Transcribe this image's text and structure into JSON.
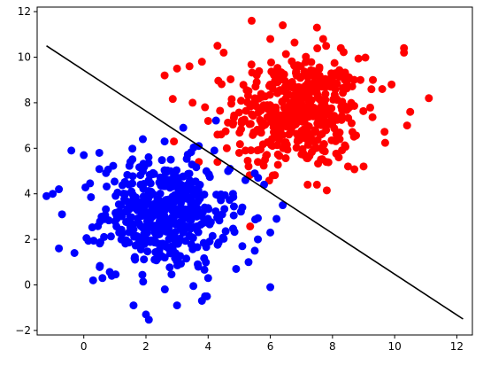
{
  "chart_data": {
    "type": "scatter",
    "title": "",
    "xlabel": "",
    "ylabel": "",
    "xlim": [
      -1.5,
      12.5
    ],
    "ylim": [
      -2.2,
      12.2
    ],
    "xticks": [
      0,
      2,
      4,
      6,
      8,
      10,
      12
    ],
    "yticks": [
      -2,
      0,
      2,
      4,
      6,
      8,
      10,
      12
    ],
    "xtick_labels": [
      "0",
      "2",
      "4",
      "6",
      "8",
      "10",
      "12"
    ],
    "ytick_labels": [
      "−2",
      "0",
      "2",
      "4",
      "6",
      "8",
      "10",
      "12"
    ],
    "grid": false,
    "legend": "none",
    "series": [
      {
        "color": "#ff0000",
        "center": [
          6.9,
          7.6
        ],
        "spread": [
          1.0,
          1.2
        ],
        "point_count": 500,
        "points": [
          [
            5.4,
            11.6
          ],
          [
            6.4,
            11.4
          ],
          [
            7.5,
            11.3
          ],
          [
            4.3,
            10.5
          ],
          [
            6.0,
            10.8
          ],
          [
            7.7,
            10.8
          ],
          [
            10.3,
            10.4
          ],
          [
            10.3,
            10.2
          ],
          [
            4.5,
            10.2
          ],
          [
            3.4,
            9.6
          ],
          [
            3.8,
            9.8
          ],
          [
            2.6,
            9.2
          ],
          [
            3.0,
            9.5
          ],
          [
            8.9,
            9.0
          ],
          [
            9.3,
            9.0
          ],
          [
            9.9,
            8.8
          ],
          [
            9.6,
            8.6
          ],
          [
            11.1,
            8.2
          ],
          [
            10.5,
            7.6
          ],
          [
            10.4,
            7.0
          ],
          [
            3.5,
            8.0
          ],
          [
            3.9,
            7.8
          ],
          [
            4.0,
            7.2
          ],
          [
            4.3,
            6.6
          ],
          [
            4.6,
            6.0
          ],
          [
            5.2,
            5.9
          ],
          [
            5.0,
            5.8
          ],
          [
            5.6,
            5.4
          ],
          [
            5.3,
            5.2
          ],
          [
            4.3,
            5.4
          ],
          [
            3.7,
            5.4
          ],
          [
            2.9,
            6.3
          ],
          [
            7.2,
            4.4
          ],
          [
            7.5,
            4.4
          ],
          [
            8.5,
            5.2
          ],
          [
            9.0,
            5.2
          ],
          [
            8.2,
            5.6
          ],
          [
            7.8,
            5.4
          ]
        ]
      },
      {
        "color": "#0000ff",
        "center": [
          2.6,
          3.1
        ],
        "spread": [
          1.0,
          1.2
        ],
        "point_count": 500,
        "points": [
          [
            1.9,
            6.4
          ],
          [
            2.6,
            6.3
          ],
          [
            3.2,
            6.9
          ],
          [
            -0.4,
            5.9
          ],
          [
            0.0,
            5.7
          ],
          [
            0.5,
            5.8
          ],
          [
            1.5,
            5.4
          ],
          [
            3.7,
            6.1
          ],
          [
            4.2,
            5.9
          ],
          [
            4.7,
            5.1
          ],
          [
            5.2,
            4.6
          ],
          [
            5.5,
            4.9
          ],
          [
            5.8,
            4.4
          ],
          [
            4.8,
            4.0
          ],
          [
            5.1,
            3.4
          ],
          [
            6.4,
            3.5
          ],
          [
            6.2,
            2.9
          ],
          [
            6.0,
            2.3
          ],
          [
            5.6,
            2.0
          ],
          [
            5.1,
            1.7
          ],
          [
            5.5,
            1.5
          ],
          [
            5.3,
            1.0
          ],
          [
            6.0,
            -0.1
          ],
          [
            4.9,
            0.7
          ],
          [
            4.0,
            0.3
          ],
          [
            3.9,
            -0.5
          ],
          [
            3.8,
            -0.7
          ],
          [
            3.0,
            -0.9
          ],
          [
            2.0,
            -1.3
          ],
          [
            1.6,
            -0.9
          ],
          [
            0.6,
            0.3
          ],
          [
            -0.3,
            1.4
          ],
          [
            -1.2,
            3.9
          ],
          [
            -1.0,
            4.0
          ],
          [
            -0.8,
            4.2
          ],
          [
            -0.7,
            3.1
          ],
          [
            -0.8,
            1.6
          ],
          [
            0.3,
            0.2
          ],
          [
            0.9,
            0.4
          ]
        ]
      }
    ],
    "lines": [
      {
        "color": "#000000",
        "x": [
          -1.2,
          12.2
        ],
        "y": [
          10.5,
          -1.5
        ]
      }
    ]
  }
}
